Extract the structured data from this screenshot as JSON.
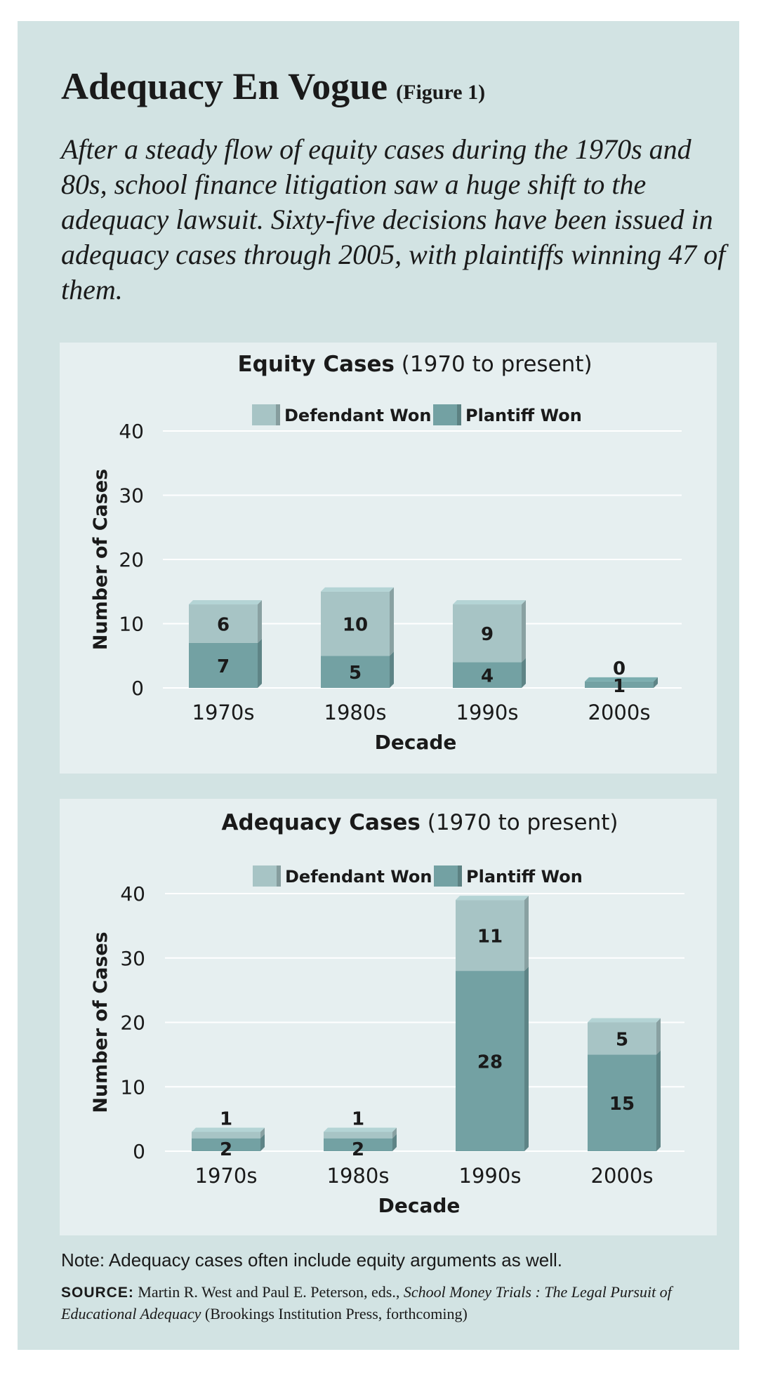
{
  "header": {
    "title": "Adequacy En Vogue",
    "figure_label": "(Figure 1)",
    "intro": "After a steady flow of equity cases during the 1970s and 80s, school finance litigation saw a huge shift to the adequacy lawsuit. Sixty-five decisions have been issued in adequacy cases through 2005, with plaintiffs winning 47 of them."
  },
  "colors": {
    "defendant": "#a7c4c5",
    "plaintiff": "#73a1a3",
    "panel_bg": "#e6eff0",
    "card_bg": "#d2e3e3"
  },
  "chart_data": [
    {
      "type": "bar",
      "stacked": true,
      "title": "Equity Cases",
      "title_suffix": "(1970 to present)",
      "xlabel": "Decade",
      "ylabel": "Number of Cases",
      "ylim": [
        0,
        40
      ],
      "yticks": [
        "0",
        "10",
        "20",
        "30",
        "40"
      ],
      "grid": true,
      "legend_position": "top-center",
      "categories": [
        "1970s",
        "1980s",
        "1990s",
        "2000s"
      ],
      "series": [
        {
          "name": "Plantiff Won",
          "values": [
            7,
            5,
            4,
            1
          ]
        },
        {
          "name": "Defendant Won",
          "values": [
            6,
            10,
            9,
            0
          ]
        }
      ]
    },
    {
      "type": "bar",
      "stacked": true,
      "title": "Adequacy Cases",
      "title_suffix": "(1970 to present)",
      "xlabel": "Decade",
      "ylabel": "Number of Cases",
      "ylim": [
        0,
        40
      ],
      "yticks": [
        "0",
        "10",
        "20",
        "30",
        "40"
      ],
      "grid": true,
      "legend_position": "top-center",
      "categories": [
        "1970s",
        "1980s",
        "1990s",
        "2000s"
      ],
      "series": [
        {
          "name": "Plantiff Won",
          "values": [
            2,
            2,
            28,
            15
          ]
        },
        {
          "name": "Defendant Won",
          "values": [
            1,
            1,
            11,
            5
          ]
        }
      ]
    }
  ],
  "footer": {
    "note": "Note: Adequacy cases often include equity arguments as well.",
    "source_label": "SOURCE:",
    "source_pre": "Martin R. West and Paul E. Peterson, eds.,",
    "source_book": "School Money Trials : The Legal Pursuit of Educational Adequacy",
    "source_post": "(Brookings Institution Press, forthcoming)"
  }
}
